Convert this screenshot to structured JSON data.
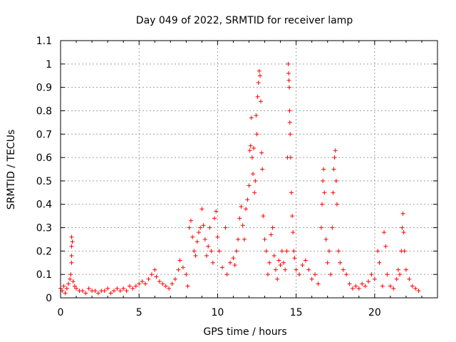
{
  "chart_data": {
    "type": "scatter",
    "title": "Day 049 of 2022, SRMTID for receiver lamp",
    "xlabel": "GPS time / hours",
    "ylabel": "SRMTID / TECUs",
    "xlim": [
      0,
      24
    ],
    "ylim": [
      0,
      1.1
    ],
    "xticks": [
      "0",
      "5",
      "10",
      "15",
      "20"
    ],
    "yticks": [
      "0",
      "0.1",
      "0.2",
      "0.3",
      "0.4",
      "0.5",
      "0.6",
      "0.7",
      "0.8",
      "0.9",
      "1",
      "1.1"
    ],
    "grid": true,
    "marker": "+",
    "color": "#ff0000",
    "series": [
      {
        "name": "SRMTID",
        "points": [
          [
            0.0,
            0.04
          ],
          [
            0.1,
            0.03
          ],
          [
            0.2,
            0.05
          ],
          [
            0.3,
            0.02
          ],
          [
            0.4,
            0.04
          ],
          [
            0.5,
            0.06
          ],
          [
            0.6,
            0.08
          ],
          [
            0.65,
            0.1
          ],
          [
            0.7,
            0.15
          ],
          [
            0.7,
            0.18
          ],
          [
            0.7,
            0.22
          ],
          [
            0.7,
            0.26
          ],
          [
            0.75,
            0.24
          ],
          [
            0.8,
            0.07
          ],
          [
            0.9,
            0.05
          ],
          [
            1.0,
            0.04
          ],
          [
            1.2,
            0.03
          ],
          [
            1.4,
            0.03
          ],
          [
            1.6,
            0.02
          ],
          [
            1.8,
            0.04
          ],
          [
            2.0,
            0.03
          ],
          [
            2.2,
            0.03
          ],
          [
            2.4,
            0.02
          ],
          [
            2.6,
            0.03
          ],
          [
            2.8,
            0.03
          ],
          [
            3.0,
            0.04
          ],
          [
            3.2,
            0.02
          ],
          [
            3.4,
            0.03
          ],
          [
            3.6,
            0.04
          ],
          [
            3.8,
            0.03
          ],
          [
            4.0,
            0.04
          ],
          [
            4.2,
            0.03
          ],
          [
            4.4,
            0.05
          ],
          [
            4.6,
            0.04
          ],
          [
            4.8,
            0.05
          ],
          [
            5.0,
            0.06
          ],
          [
            5.2,
            0.07
          ],
          [
            5.4,
            0.06
          ],
          [
            5.6,
            0.08
          ],
          [
            5.8,
            0.1
          ],
          [
            6.0,
            0.12
          ],
          [
            6.1,
            0.09
          ],
          [
            6.3,
            0.07
          ],
          [
            6.5,
            0.06
          ],
          [
            6.7,
            0.05
          ],
          [
            6.9,
            0.04
          ],
          [
            7.1,
            0.06
          ],
          [
            7.3,
            0.08
          ],
          [
            7.5,
            0.12
          ],
          [
            7.6,
            0.16
          ],
          [
            7.8,
            0.13
          ],
          [
            8.0,
            0.1
          ],
          [
            8.1,
            0.05
          ],
          [
            8.2,
            0.3
          ],
          [
            8.3,
            0.33
          ],
          [
            8.4,
            0.26
          ],
          [
            8.5,
            0.2
          ],
          [
            8.6,
            0.18
          ],
          [
            8.7,
            0.24
          ],
          [
            8.8,
            0.28
          ],
          [
            8.9,
            0.3
          ],
          [
            9.0,
            0.38
          ],
          [
            9.1,
            0.31
          ],
          [
            9.2,
            0.25
          ],
          [
            9.3,
            0.18
          ],
          [
            9.4,
            0.22
          ],
          [
            9.5,
            0.3
          ],
          [
            9.6,
            0.2
          ],
          [
            9.7,
            0.15
          ],
          [
            9.8,
            0.34
          ],
          [
            9.9,
            0.37
          ],
          [
            10.0,
            0.26
          ],
          [
            10.1,
            0.2
          ],
          [
            10.3,
            0.13
          ],
          [
            10.5,
            0.3
          ],
          [
            10.6,
            0.1
          ],
          [
            10.8,
            0.15
          ],
          [
            11.0,
            0.17
          ],
          [
            11.1,
            0.14
          ],
          [
            11.2,
            0.2
          ],
          [
            11.3,
            0.25
          ],
          [
            11.4,
            0.34
          ],
          [
            11.5,
            0.39
          ],
          [
            11.6,
            0.31
          ],
          [
            11.7,
            0.25
          ],
          [
            11.8,
            0.38
          ],
          [
            11.9,
            0.42
          ],
          [
            12.0,
            0.48
          ],
          [
            12.05,
            0.63
          ],
          [
            12.1,
            0.65
          ],
          [
            12.15,
            0.77
          ],
          [
            12.2,
            0.6
          ],
          [
            12.25,
            0.53
          ],
          [
            12.3,
            0.64
          ],
          [
            12.35,
            0.45
          ],
          [
            12.4,
            0.5
          ],
          [
            12.45,
            0.78
          ],
          [
            12.5,
            0.7
          ],
          [
            12.55,
            0.86
          ],
          [
            12.6,
            0.92
          ],
          [
            12.65,
            0.97
          ],
          [
            12.7,
            0.95
          ],
          [
            12.75,
            0.84
          ],
          [
            12.8,
            0.62
          ],
          [
            12.85,
            0.55
          ],
          [
            12.9,
            0.35
          ],
          [
            13.0,
            0.25
          ],
          [
            13.1,
            0.2
          ],
          [
            13.2,
            0.1
          ],
          [
            13.3,
            0.15
          ],
          [
            13.4,
            0.27
          ],
          [
            13.5,
            0.3
          ],
          [
            13.6,
            0.18
          ],
          [
            13.7,
            0.12
          ],
          [
            13.8,
            0.08
          ],
          [
            13.9,
            0.16
          ],
          [
            14.0,
            0.14
          ],
          [
            14.1,
            0.2
          ],
          [
            14.2,
            0.15
          ],
          [
            14.3,
            0.12
          ],
          [
            14.4,
            0.2
          ],
          [
            14.45,
            0.6
          ],
          [
            14.5,
            1.0
          ],
          [
            14.52,
            0.96
          ],
          [
            14.54,
            0.93
          ],
          [
            14.56,
            0.9
          ],
          [
            14.58,
            0.8
          ],
          [
            14.6,
            0.75
          ],
          [
            14.62,
            0.7
          ],
          [
            14.65,
            0.6
          ],
          [
            14.7,
            0.45
          ],
          [
            14.75,
            0.35
          ],
          [
            14.8,
            0.28
          ],
          [
            14.85,
            0.2
          ],
          [
            14.9,
            0.17
          ],
          [
            15.0,
            0.12
          ],
          [
            15.2,
            0.1
          ],
          [
            15.4,
            0.14
          ],
          [
            15.6,
            0.16
          ],
          [
            15.8,
            0.12
          ],
          [
            16.0,
            0.08
          ],
          [
            16.2,
            0.1
          ],
          [
            16.4,
            0.06
          ],
          [
            16.6,
            0.3
          ],
          [
            16.65,
            0.4
          ],
          [
            16.7,
            0.5
          ],
          [
            16.75,
            0.55
          ],
          [
            16.8,
            0.45
          ],
          [
            16.9,
            0.25
          ],
          [
            17.0,
            0.15
          ],
          [
            17.1,
            0.2
          ],
          [
            17.2,
            0.1
          ],
          [
            17.3,
            0.3
          ],
          [
            17.35,
            0.45
          ],
          [
            17.4,
            0.55
          ],
          [
            17.45,
            0.6
          ],
          [
            17.5,
            0.63
          ],
          [
            17.55,
            0.5
          ],
          [
            17.6,
            0.4
          ],
          [
            17.7,
            0.2
          ],
          [
            17.8,
            0.15
          ],
          [
            18.0,
            0.12
          ],
          [
            18.2,
            0.1
          ],
          [
            18.4,
            0.06
          ],
          [
            18.6,
            0.04
          ],
          [
            18.8,
            0.05
          ],
          [
            19.0,
            0.04
          ],
          [
            19.2,
            0.06
          ],
          [
            19.4,
            0.05
          ],
          [
            19.6,
            0.07
          ],
          [
            19.8,
            0.1
          ],
          [
            20.0,
            0.08
          ],
          [
            20.2,
            0.2
          ],
          [
            20.3,
            0.15
          ],
          [
            20.5,
            0.05
          ],
          [
            20.6,
            0.28
          ],
          [
            20.7,
            0.22
          ],
          [
            20.8,
            0.1
          ],
          [
            21.0,
            0.05
          ],
          [
            21.2,
            0.04
          ],
          [
            21.4,
            0.08
          ],
          [
            21.5,
            0.12
          ],
          [
            21.6,
            0.1
          ],
          [
            21.7,
            0.2
          ],
          [
            21.75,
            0.3
          ],
          [
            21.8,
            0.36
          ],
          [
            21.85,
            0.28
          ],
          [
            21.9,
            0.2
          ],
          [
            22.0,
            0.12
          ],
          [
            22.2,
            0.08
          ],
          [
            22.4,
            0.05
          ],
          [
            22.6,
            0.04
          ],
          [
            22.8,
            0.03
          ]
        ]
      }
    ]
  }
}
